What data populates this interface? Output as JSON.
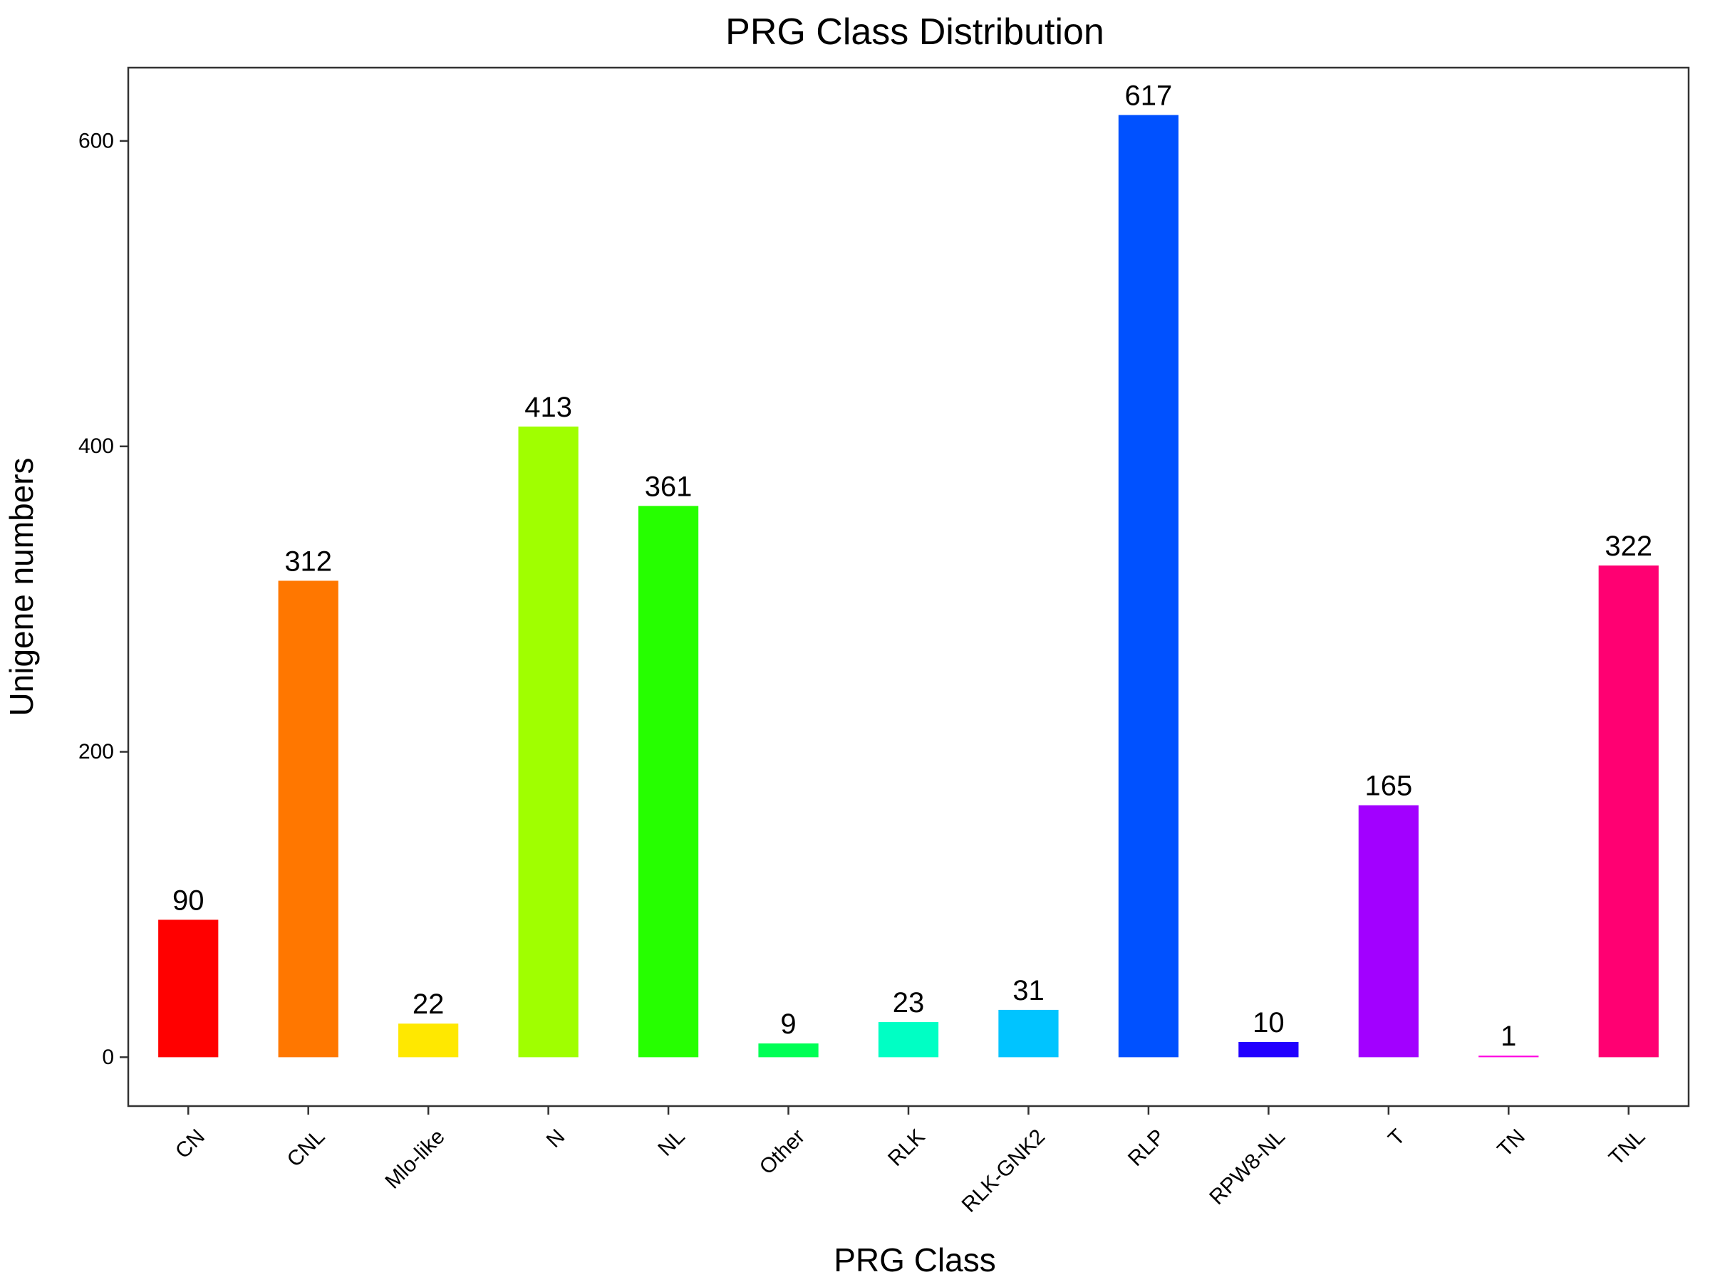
{
  "chart_data": {
    "type": "bar",
    "title": "PRG Class Distribution",
    "xlabel": "PRG Class",
    "ylabel": "Unigene numbers",
    "categories": [
      "CN",
      "CNL",
      "Mlo-like",
      "N",
      "NL",
      "Other",
      "RLK",
      "RLK-GNK2",
      "RLP",
      "RPW8-NL",
      "T",
      "TN",
      "TNL"
    ],
    "values": [
      90,
      312,
      22,
      413,
      361,
      9,
      23,
      31,
      617,
      10,
      165,
      1,
      322
    ],
    "colors": [
      "#FF0000",
      "#FF7700",
      "#FFE800",
      "#A0FF00",
      "#26FF00",
      "#00FF55",
      "#00FFC4",
      "#00C4FF",
      "#0051FF",
      "#2200FF",
      "#A200FF",
      "#FF00E1",
      "#FF0072"
    ],
    "yticks": [
      0,
      200,
      400,
      600
    ],
    "ylim": [
      -32,
      648
    ],
    "grid": false,
    "legend": "none"
  }
}
